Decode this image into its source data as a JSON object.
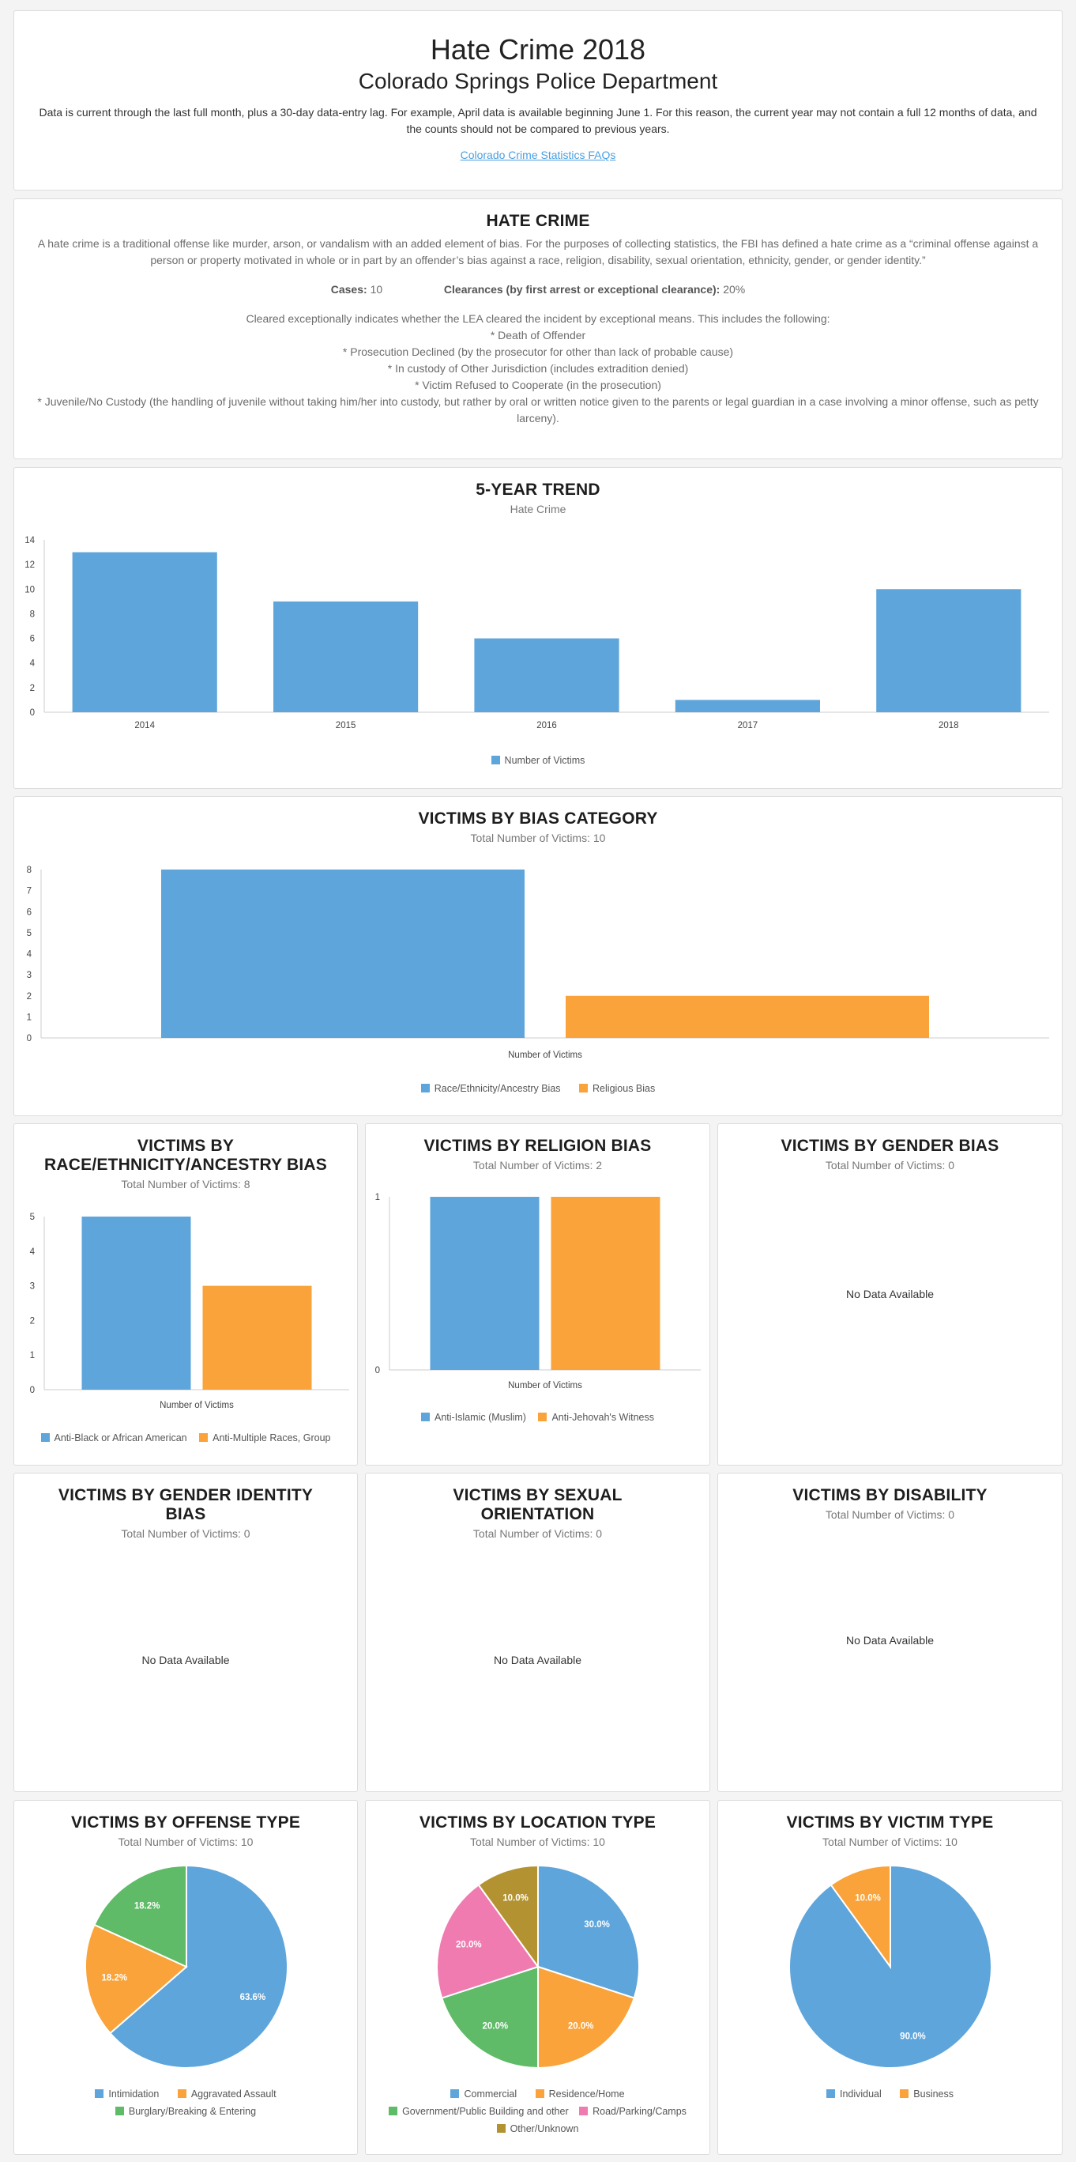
{
  "header": {
    "title": "Hate Crime 2018",
    "subtitle": "Colorado Springs Police Department",
    "note": "Data is current through the last full month, plus a 30-day data-entry lag. For example, April data is available beginning June 1. For this reason, the current year may not contain a full 12 months of data, and the counts should not be compared to previous years.",
    "faq_link": "Colorado Crime Statistics FAQs"
  },
  "definition": {
    "title": "HATE CRIME",
    "text": "A hate crime is a traditional offense like murder, arson, or vandalism with an added element of bias. For the purposes of collecting statistics, the FBI has defined a hate crime as a “criminal offense against a person or property motivated in whole or in part by an offender’s bias against a race, religion, disability, sexual orientation, ethnicity, gender, or gender identity.”",
    "cases_label": "Cases:",
    "cases_value": "10",
    "clearances_label": "Clearances (by first arrest or exceptional clearance):",
    "clearances_value": "20%",
    "cleared_intro": "Cleared exceptionally indicates whether the LEA cleared the incident by exceptional means. This includes the following:",
    "cleared_items": [
      "* Death of Offender",
      "* Prosecution Declined (by the prosecutor for other than lack of probable cause)",
      "* In custody of Other Jurisdiction (includes extradition denied)",
      "* Victim Refused to Cooperate (in the prosecution)",
      "* Juvenile/No Custody (the handling of juvenile without taking him/her into custody, but rather by oral or written notice given to the parents or legal guardian in a case involving a minor offense, such as petty larceny)."
    ]
  },
  "colors": {
    "blue": "#5ea5db",
    "orange": "#f9a33a",
    "green": "#5fbb68",
    "pink": "#ef7bb0",
    "olive": "#b39331"
  },
  "no_data": "No Data Available",
  "chart_data": [
    {
      "id": "trend",
      "type": "bar",
      "title": "5-YEAR TREND",
      "subtitle": "Hate Crime",
      "categories": [
        "2014",
        "2015",
        "2016",
        "2017",
        "2018"
      ],
      "series": [
        {
          "name": "Number of Victims",
          "values": [
            13,
            9,
            6,
            1,
            10
          ]
        }
      ],
      "ylim": [
        0,
        14
      ],
      "yticks": [
        0,
        2,
        4,
        6,
        8,
        10,
        12,
        14
      ],
      "legend": "bottom"
    },
    {
      "id": "bias",
      "type": "bar",
      "title": "VICTIMS BY BIAS CATEGORY",
      "subtitle": "Total Number of Victims: 10",
      "xlabel": "Number of Victims",
      "series": [
        {
          "name": "Race/Ethnicity/Ancestry Bias",
          "values": [
            8
          ]
        },
        {
          "name": "Religious Bias",
          "values": [
            2
          ]
        }
      ],
      "ylim": [
        0,
        8
      ],
      "yticks": [
        0,
        1,
        2,
        3,
        4,
        5,
        6,
        7,
        8
      ],
      "legend": "bottom"
    },
    {
      "id": "race",
      "type": "bar",
      "title": "VICTIMS BY RACE/ETHNICITY/ANCESTRY BIAS",
      "title_lines": [
        "VICTIMS BY",
        "RACE/ETHNICITY/ANCESTRY BIAS"
      ],
      "subtitle": "Total Number of Victims: 8",
      "xlabel": "Number of Victims",
      "series": [
        {
          "name": "Anti-Black or African American",
          "values": [
            5
          ]
        },
        {
          "name": "Anti-Multiple Races, Group",
          "values": [
            3
          ]
        }
      ],
      "ylim": [
        0,
        5
      ],
      "yticks": [
        0,
        1,
        2,
        3,
        4,
        5
      ],
      "legend": "bottom"
    },
    {
      "id": "religion",
      "type": "bar",
      "title": "VICTIMS BY RELIGION BIAS",
      "subtitle": "Total Number of Victims: 2",
      "xlabel": "Number of Victims",
      "series": [
        {
          "name": "Anti-Islamic (Muslim)",
          "values": [
            1
          ]
        },
        {
          "name": "Anti-Jehovah's Witness",
          "values": [
            1
          ]
        }
      ],
      "ylim": [
        0,
        1
      ],
      "yticks": [
        0,
        1
      ],
      "legend": "bottom"
    },
    {
      "id": "gender",
      "type": "bar",
      "title": "VICTIMS BY GENDER BIAS",
      "subtitle": "Total Number of Victims: 0",
      "series": []
    },
    {
      "id": "gender_identity",
      "type": "bar",
      "title": "VICTIMS BY GENDER IDENTITY BIAS",
      "title_lines": [
        "VICTIMS BY GENDER IDENTITY",
        "BIAS"
      ],
      "subtitle": "Total Number of Victims: 0",
      "series": []
    },
    {
      "id": "sexual_orientation",
      "type": "bar",
      "title": "VICTIMS BY SEXUAL ORIENTATION",
      "title_lines": [
        "VICTIMS BY SEXUAL",
        "ORIENTATION"
      ],
      "subtitle": "Total Number of Victims: 0",
      "series": []
    },
    {
      "id": "disability",
      "type": "bar",
      "title": "VICTIMS BY DISABILITY",
      "subtitle": "Total Number of Victims: 0",
      "series": []
    },
    {
      "id": "offense",
      "type": "pie",
      "title": "VICTIMS BY OFFENSE TYPE",
      "subtitle": "Total Number of Victims: 10",
      "slices": [
        {
          "name": "Intimidation",
          "value": 63.6,
          "label": "63.6%"
        },
        {
          "name": "Aggravated Assault",
          "value": 18.2,
          "label": "18.2%"
        },
        {
          "name": "Burglary/Breaking & Entering",
          "value": 18.2,
          "label": "18.2%"
        }
      ],
      "legend": "bottom"
    },
    {
      "id": "location",
      "type": "pie",
      "title": "VICTIMS BY LOCATION TYPE",
      "subtitle": "Total Number of Victims: 10",
      "slices": [
        {
          "name": "Commercial",
          "value": 30,
          "label": "30.0%"
        },
        {
          "name": "Residence/Home",
          "value": 20,
          "label": "20.0%"
        },
        {
          "name": "Government/Public Building and other",
          "value": 20,
          "label": "20.0%"
        },
        {
          "name": "Road/Parking/Camps",
          "value": 20,
          "label": "20.0%"
        },
        {
          "name": "Other/Unknown",
          "value": 10,
          "label": "10.0%"
        }
      ],
      "legend": "bottom"
    },
    {
      "id": "victim",
      "type": "pie",
      "title": "VICTIMS BY VICTIM TYPE",
      "subtitle": "Total Number of Victims: 10",
      "slices": [
        {
          "name": "Individual",
          "value": 90,
          "label": "90.0%"
        },
        {
          "name": "Business",
          "value": 10,
          "label": "10.0%"
        }
      ],
      "legend": "bottom"
    }
  ]
}
